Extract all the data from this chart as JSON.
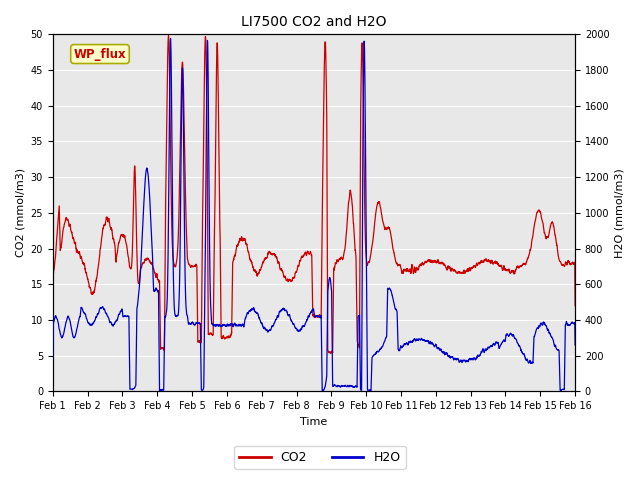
{
  "title": "LI7500 CO2 and H2O",
  "xlabel": "Time",
  "ylabel_left": "CO2 (mmol/m3)",
  "ylabel_right": "H2O (mmol/m3)",
  "annotation": "WP_flux",
  "ylim_left": [
    0,
    50
  ],
  "ylim_right": [
    0,
    2000
  ],
  "yticks_left": [
    0,
    5,
    10,
    15,
    20,
    25,
    30,
    35,
    40,
    45,
    50
  ],
  "yticks_right": [
    0,
    200,
    400,
    600,
    800,
    1000,
    1200,
    1400,
    1600,
    1800,
    2000
  ],
  "xtick_labels": [
    "Feb 1",
    "Feb 2",
    "Feb 3",
    "Feb 4",
    "Feb 5",
    "Feb 6",
    "Feb 7",
    "Feb 8",
    "Feb 9",
    "Feb 10",
    "Feb 11",
    "Feb 12",
    "Feb 13",
    "Feb 14",
    "Feb 15",
    "Feb 16"
  ],
  "n_days": 15,
  "bg_color": "#e8e8e8",
  "line_color_co2": "#cc0000",
  "line_color_h2o": "#0000cc",
  "annotation_bg": "#ffffcc",
  "annotation_edge": "#aaaa00",
  "annotation_text_color": "#cc0000",
  "legend_co2": "CO2",
  "legend_h2o": "H2O",
  "title_fontsize": 10,
  "axis_label_fontsize": 8,
  "tick_fontsize": 7,
  "legend_fontsize": 9
}
